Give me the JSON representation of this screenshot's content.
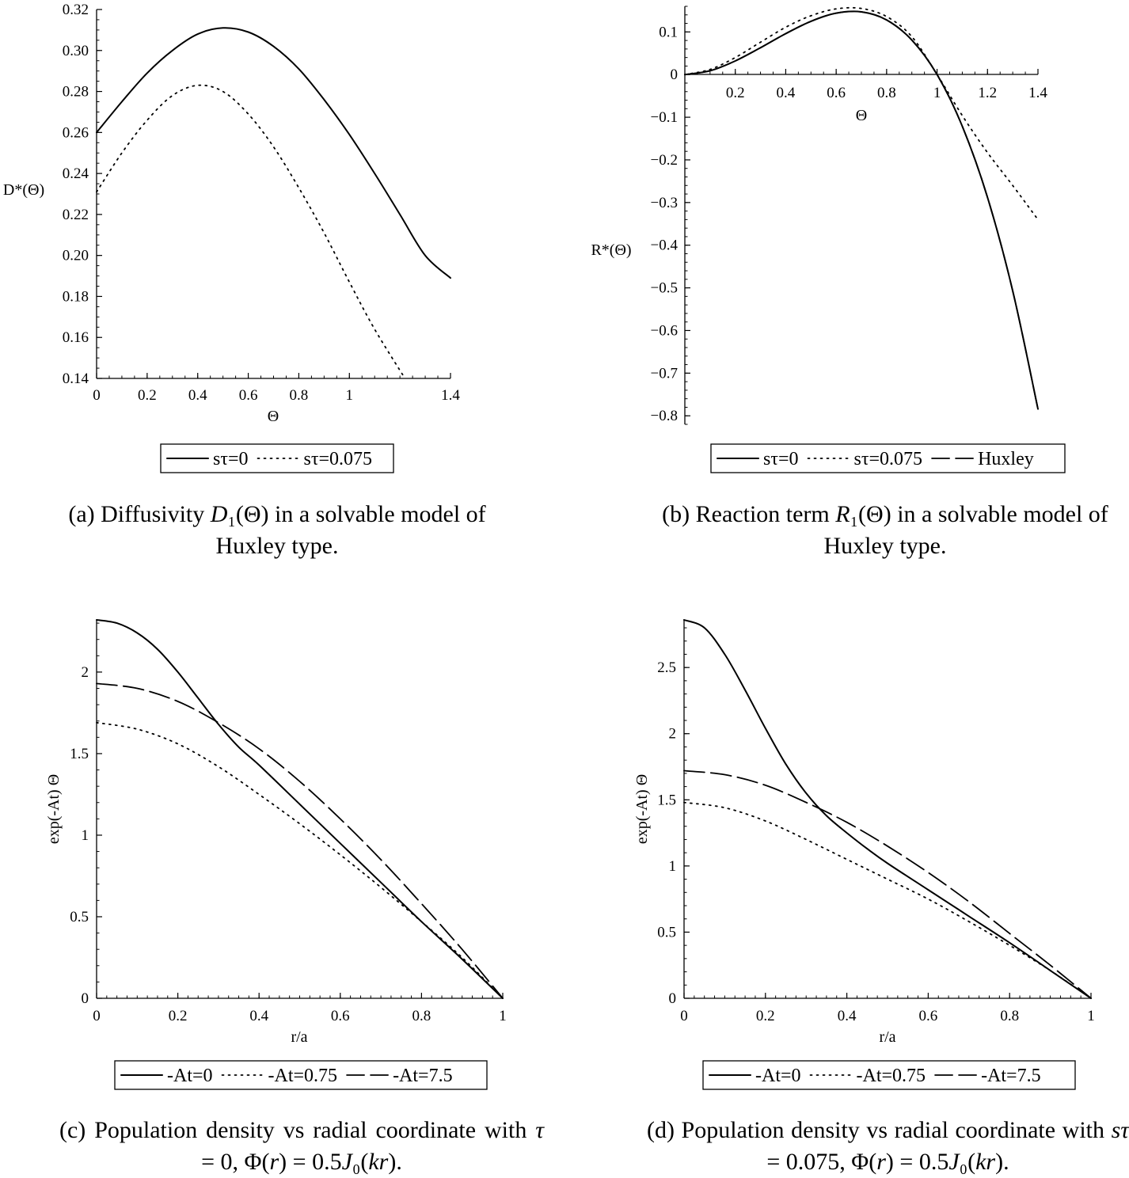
{
  "captions": {
    "a": "(a) Diffusivity D₁(Θ) in a solvable model of Huxley type.",
    "b": "(b) Reaction term R₁(Θ) in a solvable model of Huxley type.",
    "c": "(c) Population density vs radial coordinate with τ = 0, Φ(r) = 0.5J₀(kr).",
    "d": "(d) Population density vs radial coordinate with sτ = 0.075, Φ(r) = 0.5J₀(kr)."
  },
  "chart_data": [
    {
      "id": "a",
      "type": "line",
      "title": "",
      "xlabel": "Θ",
      "ylabel": "D*(Θ)",
      "xlim": [
        0,
        1.4
      ],
      "ylim": [
        0.14,
        0.32
      ],
      "xticks": [
        0,
        0.2,
        0.4,
        0.6,
        0.8,
        1,
        1.4
      ],
      "xtick_labels": [
        "0",
        "0.2",
        "0.4",
        "0.6",
        "0.8",
        "1",
        "1.4"
      ],
      "yticks": [
        0.14,
        0.16,
        0.18,
        0.2,
        0.22,
        0.24,
        0.26,
        0.28,
        0.3,
        0.32
      ],
      "ytick_labels": [
        "0.14",
        "0.16",
        "0.18",
        "0.20",
        "0.22",
        "0.24",
        "0.26",
        "0.28",
        "0.30",
        "0.32"
      ],
      "grid": false,
      "legend_position": "bottom",
      "series": [
        {
          "name": "sτ=0",
          "style": "solid",
          "x": [
            0,
            0.1,
            0.2,
            0.3,
            0.4,
            0.5,
            0.6,
            0.7,
            0.8,
            0.9,
            1.0,
            1.1,
            1.2,
            1.3,
            1.4
          ],
          "y": [
            0.26,
            0.275,
            0.289,
            0.3,
            0.308,
            0.311,
            0.309,
            0.302,
            0.291,
            0.276,
            0.259,
            0.24,
            0.22,
            0.2,
            0.189
          ]
        },
        {
          "name": "sτ=0.075",
          "style": "dotted",
          "x": [
            0,
            0.1,
            0.2,
            0.3,
            0.4,
            0.5,
            0.6,
            0.7,
            0.8,
            0.9,
            1.0,
            1.1,
            1.22
          ],
          "y": [
            0.231,
            0.25,
            0.266,
            0.278,
            0.283,
            0.28,
            0.269,
            0.253,
            0.233,
            0.211,
            0.187,
            0.164,
            0.14
          ]
        }
      ]
    },
    {
      "id": "b",
      "type": "line",
      "title": "",
      "xlabel": "Θ",
      "ylabel": "R*(Θ)",
      "xlim": [
        0,
        1.4
      ],
      "ylim": [
        -0.82,
        0.16
      ],
      "xticks": [
        0.2,
        0.4,
        0.6,
        0.8,
        1,
        1.2,
        1.4
      ],
      "xtick_labels": [
        "0.2",
        "0.4",
        "0.6",
        "0.8",
        "1",
        "1.2",
        "1.4"
      ],
      "yticks": [
        0.1,
        0,
        -0.1,
        -0.2,
        -0.3,
        -0.4,
        -0.5,
        -0.6,
        -0.7,
        -0.8
      ],
      "ytick_labels": [
        "0.1",
        "0",
        "−0.1",
        "−0.2",
        "−0.3",
        "−0.4",
        "−0.5",
        "−0.6",
        "−0.7",
        "−0.8"
      ],
      "grid": false,
      "legend_position": "bottom",
      "series": [
        {
          "name": "sτ=0",
          "style": "solid",
          "x": [
            0,
            0.1,
            0.2,
            0.3,
            0.4,
            0.5,
            0.6,
            0.7,
            0.8,
            0.9,
            1.0,
            1.1,
            1.2,
            1.3,
            1.4
          ],
          "y": [
            0,
            0.009,
            0.032,
            0.063,
            0.096,
            0.125,
            0.144,
            0.147,
            0.128,
            0.081,
            0.0,
            -0.121,
            -0.288,
            -0.507,
            -0.784
          ]
        },
        {
          "name": "sτ=0.075",
          "style": "dotted",
          "x": [
            0,
            0.1,
            0.2,
            0.3,
            0.4,
            0.5,
            0.6,
            0.7,
            0.8,
            0.9,
            1.0,
            1.1,
            1.2,
            1.3,
            1.4
          ],
          "y": [
            0,
            0.012,
            0.04,
            0.076,
            0.111,
            0.138,
            0.154,
            0.155,
            0.136,
            0.089,
            0.0,
            -0.096,
            -0.183,
            -0.26,
            -0.34
          ]
        },
        {
          "name": "Huxley",
          "style": "dashed",
          "x": [
            0,
            0.1,
            0.2,
            0.3,
            0.4,
            0.5,
            0.6,
            0.7,
            0.8,
            0.9,
            1.0,
            1.1,
            1.2,
            1.3,
            1.4
          ],
          "y": [
            0,
            0.009,
            0.032,
            0.063,
            0.096,
            0.125,
            0.144,
            0.147,
            0.128,
            0.081,
            0.0,
            -0.121,
            -0.288,
            -0.507,
            -0.784
          ]
        }
      ]
    },
    {
      "id": "c",
      "type": "line",
      "title": "",
      "xlabel": "r/a",
      "ylabel": "exp(-At) Θ",
      "xlim": [
        0,
        1
      ],
      "ylim": [
        0,
        2.32
      ],
      "xticks": [
        0,
        0.2,
        0.4,
        0.6,
        0.8,
        1
      ],
      "xtick_labels": [
        "0",
        "0.2",
        "0.4",
        "0.6",
        "0.8",
        "1"
      ],
      "yticks": [
        0,
        0.5,
        1,
        1.5,
        2
      ],
      "ytick_labels": [
        "0",
        "0.5",
        "1",
        "1.5",
        "2"
      ],
      "grid": false,
      "legend_position": "bottom",
      "series": [
        {
          "name": "-At=0",
          "style": "solid",
          "x": [
            0,
            0.05,
            0.1,
            0.15,
            0.2,
            0.25,
            0.3,
            0.35,
            0.4,
            0.5,
            0.6,
            0.7,
            0.8,
            0.9,
            1.0
          ],
          "y": [
            2.32,
            2.3,
            2.24,
            2.14,
            2.0,
            1.84,
            1.68,
            1.54,
            1.43,
            1.19,
            0.95,
            0.71,
            0.47,
            0.24,
            0.0
          ]
        },
        {
          "name": "-At=0.75",
          "style": "dotted",
          "x": [
            0,
            0.1,
            0.2,
            0.3,
            0.4,
            0.5,
            0.6,
            0.7,
            0.8,
            0.9,
            1.0
          ],
          "y": [
            1.69,
            1.65,
            1.56,
            1.42,
            1.25,
            1.07,
            0.88,
            0.68,
            0.47,
            0.25,
            0.0
          ]
        },
        {
          "name": "-At=7.5",
          "style": "dashed",
          "x": [
            0,
            0.1,
            0.2,
            0.3,
            0.4,
            0.5,
            0.6,
            0.7,
            0.8,
            0.9,
            1.0
          ],
          "y": [
            1.93,
            1.9,
            1.82,
            1.69,
            1.53,
            1.33,
            1.1,
            0.85,
            0.58,
            0.3,
            0.0
          ]
        }
      ]
    },
    {
      "id": "d",
      "type": "line",
      "title": "",
      "xlabel": "r/a",
      "ylabel": "exp(-At) Θ",
      "xlim": [
        0,
        1
      ],
      "ylim": [
        0,
        2.86
      ],
      "xticks": [
        0,
        0.2,
        0.4,
        0.6,
        0.8,
        1
      ],
      "xtick_labels": [
        "0",
        "0.2",
        "0.4",
        "0.6",
        "0.8",
        "1"
      ],
      "yticks": [
        0,
        0.5,
        1,
        1.5,
        2,
        2.5
      ],
      "ytick_labels": [
        "0",
        "0.5",
        "1",
        "1.5",
        "2",
        "2.5"
      ],
      "grid": false,
      "legend_position": "bottom",
      "series": [
        {
          "name": "-At=0",
          "style": "solid",
          "x": [
            0,
            0.05,
            0.1,
            0.15,
            0.2,
            0.25,
            0.3,
            0.35,
            0.4,
            0.45,
            0.5,
            0.6,
            0.7,
            0.8,
            0.9,
            1.0
          ],
          "y": [
            2.86,
            2.8,
            2.6,
            2.33,
            2.04,
            1.77,
            1.55,
            1.38,
            1.25,
            1.13,
            1.02,
            0.82,
            0.62,
            0.42,
            0.21,
            0.0
          ]
        },
        {
          "name": "-At=0.75",
          "style": "dotted",
          "x": [
            0,
            0.1,
            0.2,
            0.3,
            0.4,
            0.5,
            0.6,
            0.7,
            0.8,
            0.9,
            1.0
          ],
          "y": [
            1.48,
            1.44,
            1.34,
            1.2,
            1.05,
            0.9,
            0.75,
            0.58,
            0.4,
            0.21,
            0.0
          ]
        },
        {
          "name": "-At=7.5",
          "style": "dashed",
          "x": [
            0,
            0.1,
            0.2,
            0.3,
            0.4,
            0.5,
            0.6,
            0.7,
            0.8,
            0.9,
            1.0
          ],
          "y": [
            1.72,
            1.69,
            1.61,
            1.48,
            1.33,
            1.15,
            0.95,
            0.73,
            0.49,
            0.25,
            0.0
          ]
        }
      ]
    }
  ]
}
